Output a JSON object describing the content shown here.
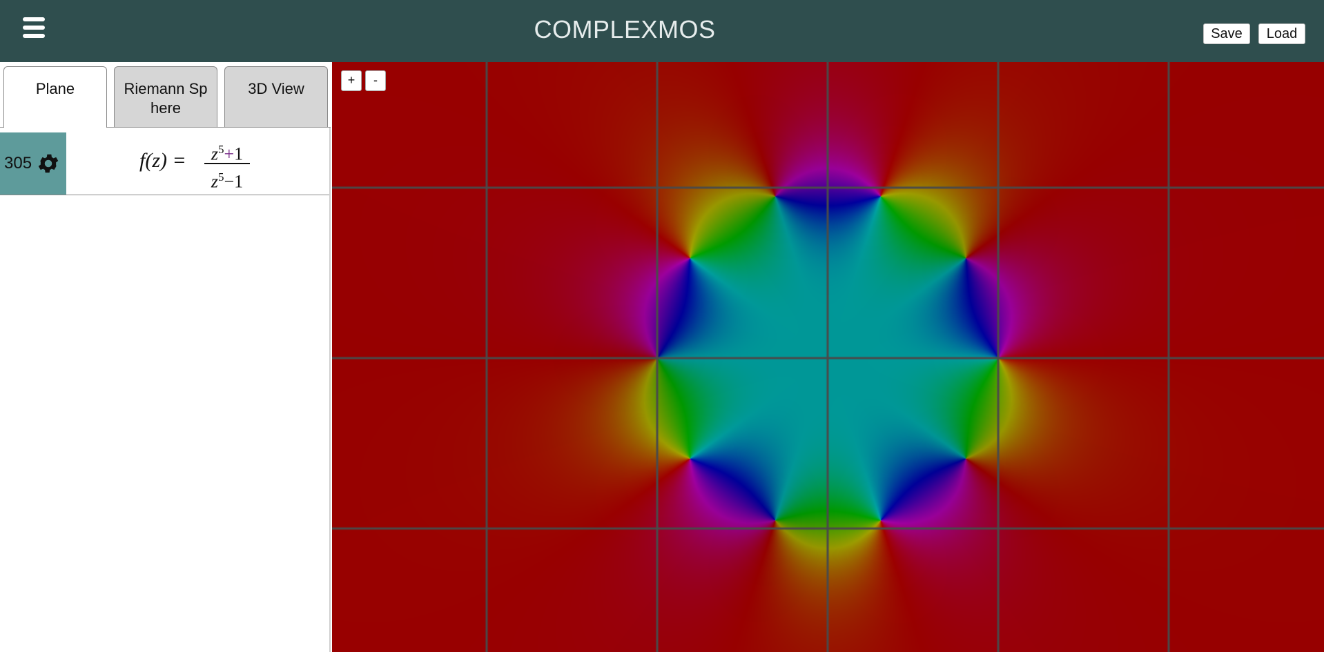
{
  "header": {
    "title": "COMPLEXMOS",
    "menu_icon": "hamburger-menu-icon",
    "save_label": "Save",
    "load_label": "Load",
    "background": "#2f4e4e"
  },
  "sidebar": {
    "tabs": [
      {
        "label": "Plane",
        "active": true
      },
      {
        "label": "Riemann Sphere",
        "active": false
      },
      {
        "label": "3D View",
        "active": false
      }
    ],
    "expressions": [
      {
        "id": "305",
        "settings_icon": "gear-icon",
        "lhs": "f(z) =",
        "numerator": {
          "base": "z",
          "exp": "5",
          "op": "+",
          "const": "1"
        },
        "denominator": {
          "base": "z",
          "exp": "5",
          "op": "−",
          "const": "1"
        }
      }
    ]
  },
  "plot": {
    "zoom_in_label": "+",
    "zoom_out_label": "-",
    "function": "(z^5+1)/(z^5-1)",
    "coloring": "domain coloring (hue = argument)",
    "grid": true,
    "colors": {
      "far_field": "#8b0000",
      "grid": "#4a4a4a"
    }
  }
}
